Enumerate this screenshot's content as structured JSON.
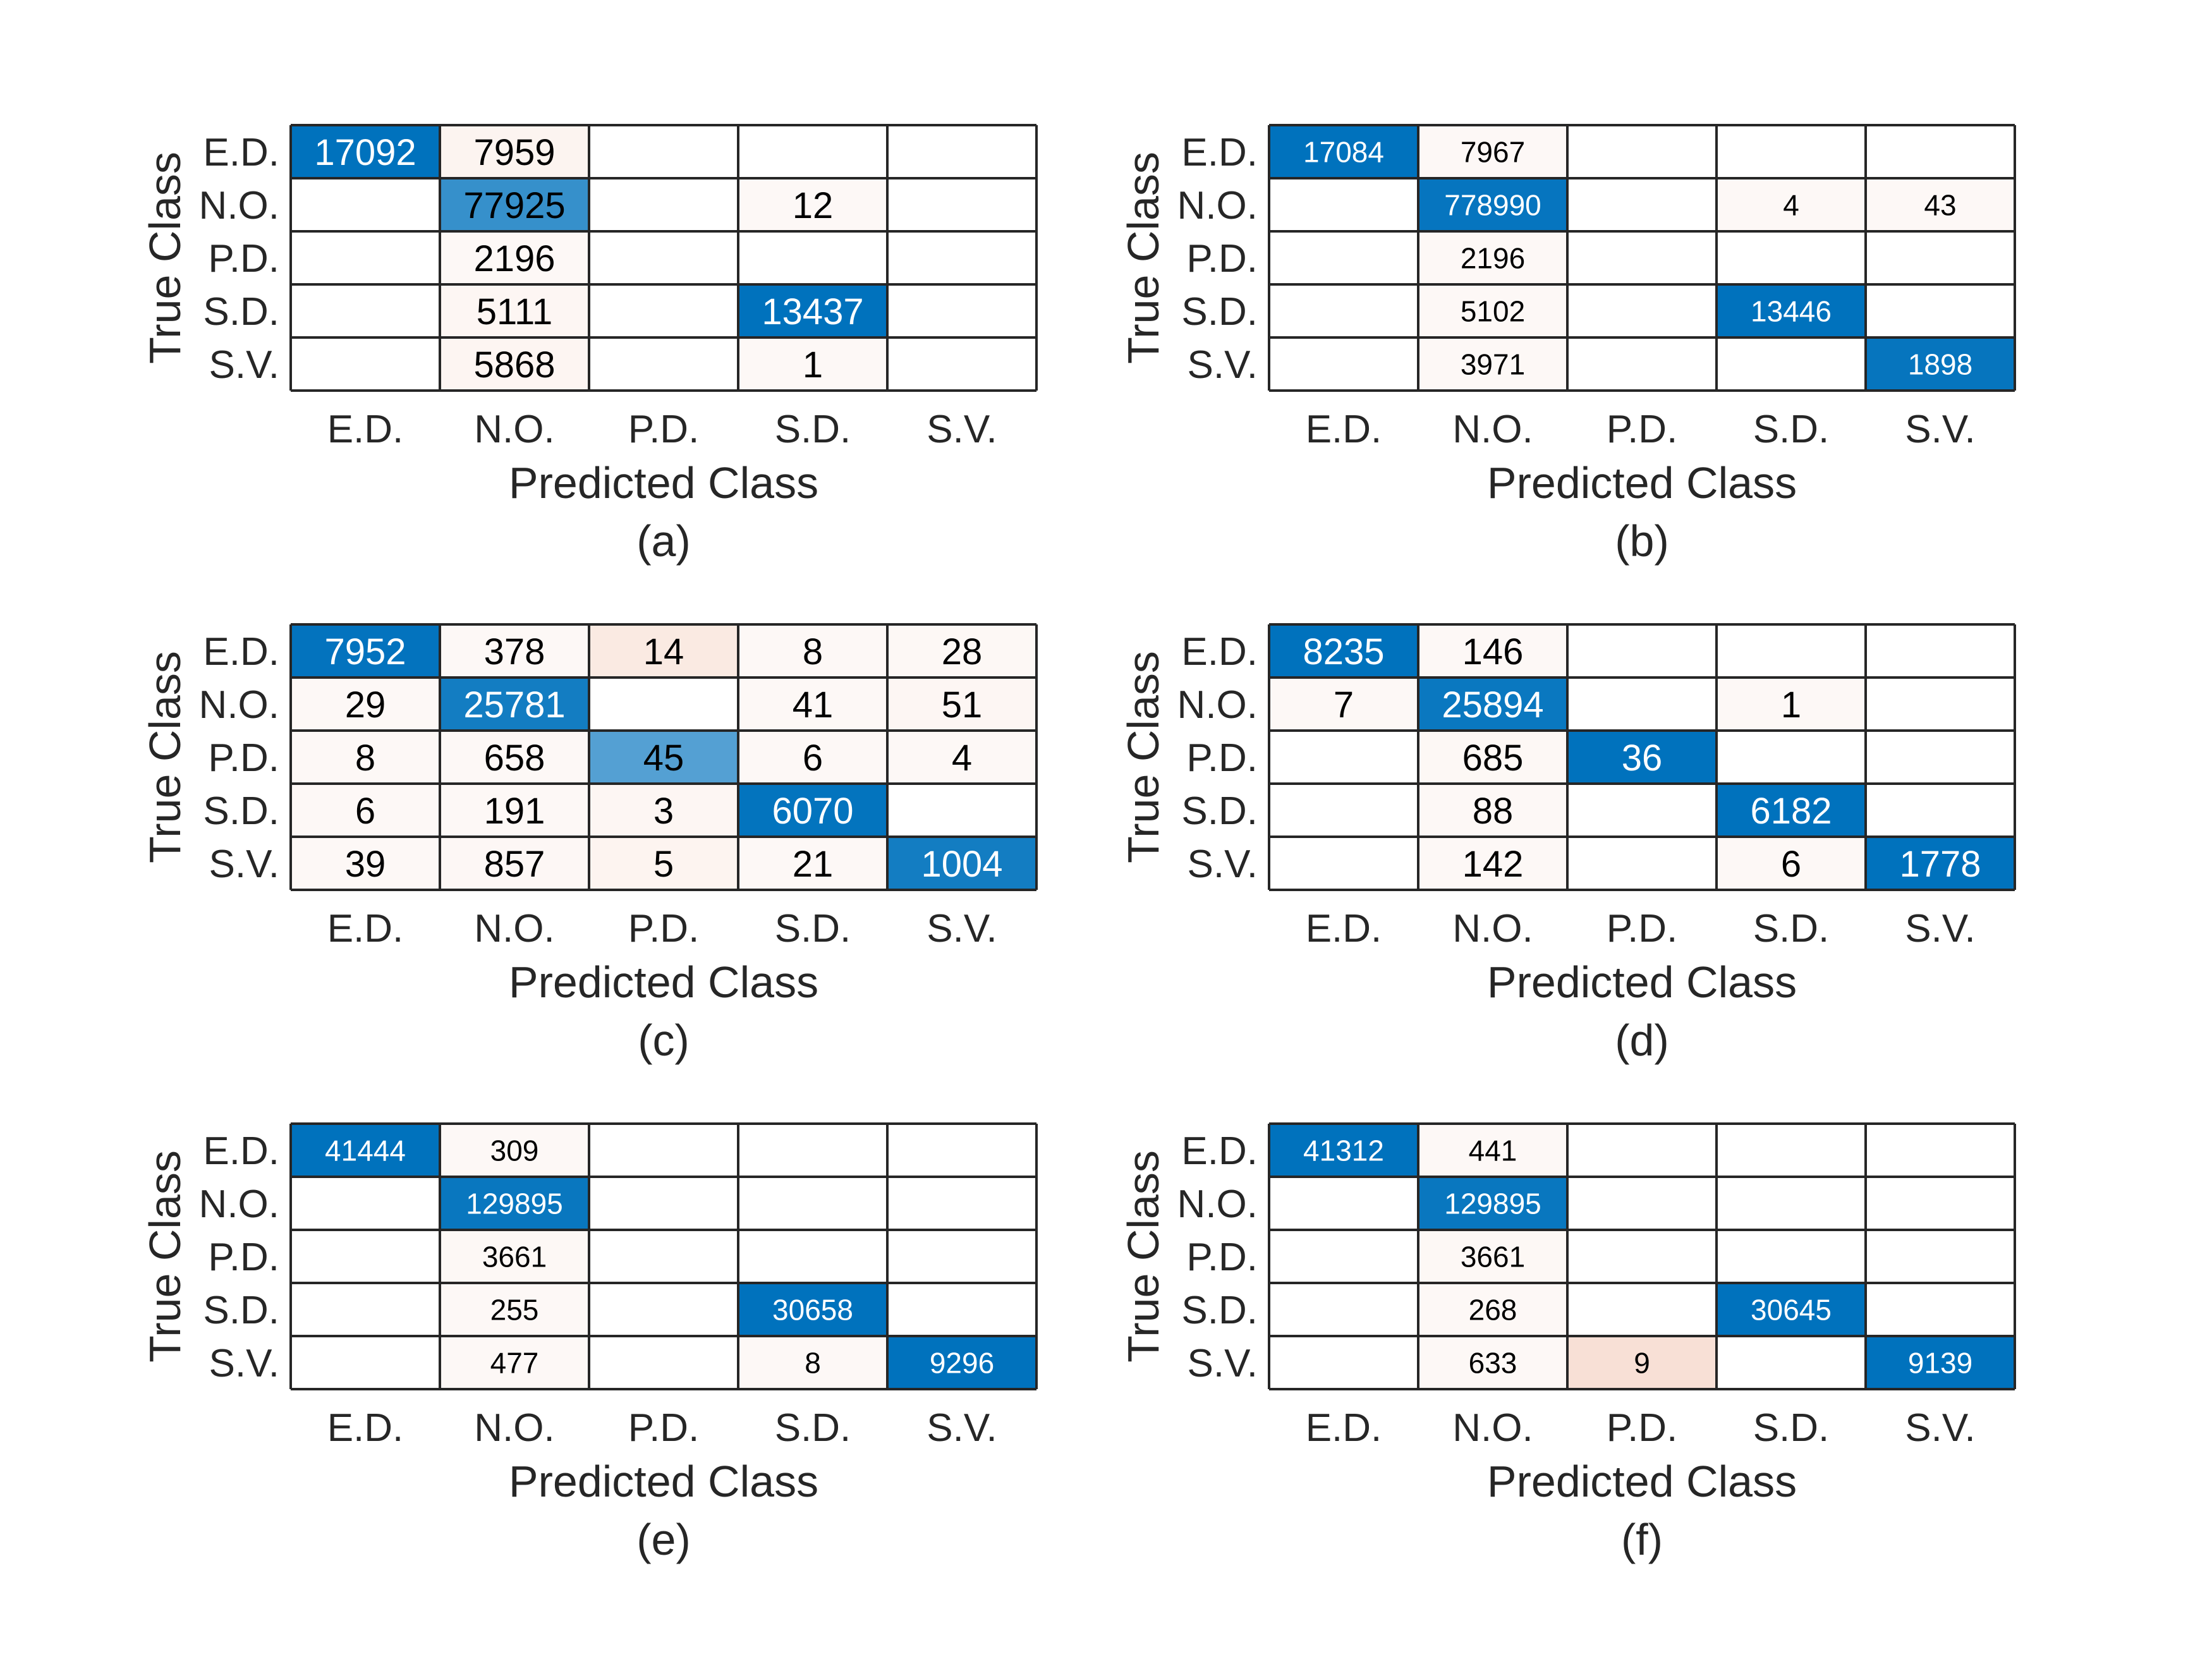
{
  "chart_data": [
    {
      "type": "heatmap",
      "caption": "(a)",
      "xlabel": "Predicted Class",
      "ylabel": "True Class",
      "x_categories": [
        "E.D.",
        "N.O.",
        "P.D.",
        "S.D.",
        "S.V."
      ],
      "y_categories": [
        "E.D.",
        "N.O.",
        "P.D.",
        "S.D.",
        "S.V."
      ],
      "values": [
        [
          17092,
          7959,
          null,
          null,
          null
        ],
        [
          null,
          77925,
          null,
          12,
          null
        ],
        [
          null,
          2196,
          null,
          null,
          null
        ],
        [
          null,
          5111,
          null,
          13437,
          null
        ],
        [
          null,
          5868,
          null,
          1,
          null
        ]
      ],
      "size": "large"
    },
    {
      "type": "heatmap",
      "caption": "(b)",
      "xlabel": "Predicted Class",
      "ylabel": "True Class",
      "x_categories": [
        "E.D.",
        "N.O.",
        "P.D.",
        "S.D.",
        "S.V."
      ],
      "y_categories": [
        "E.D.",
        "N.O.",
        "P.D.",
        "S.D.",
        "S.V."
      ],
      "values": [
        [
          17084,
          7967,
          null,
          null,
          null
        ],
        [
          null,
          778990,
          null,
          4,
          43
        ],
        [
          null,
          2196,
          null,
          null,
          null
        ],
        [
          null,
          5102,
          null,
          13446,
          null
        ],
        [
          null,
          3971,
          null,
          null,
          1898
        ]
      ],
      "size": "small"
    },
    {
      "type": "heatmap",
      "caption": "(c)",
      "xlabel": "Predicted Class",
      "ylabel": "True Class",
      "x_categories": [
        "E.D.",
        "N.O.",
        "P.D.",
        "S.D.",
        "S.V."
      ],
      "y_categories": [
        "E.D.",
        "N.O.",
        "P.D.",
        "S.D.",
        "S.V."
      ],
      "values": [
        [
          7952,
          378,
          14,
          8,
          28
        ],
        [
          29,
          25781,
          null,
          41,
          51
        ],
        [
          8,
          658,
          45,
          6,
          4
        ],
        [
          6,
          191,
          3,
          6070,
          null
        ],
        [
          39,
          857,
          5,
          21,
          1004
        ]
      ],
      "size": "large"
    },
    {
      "type": "heatmap",
      "caption": "(d)",
      "xlabel": "Predicted Class",
      "ylabel": "True Class",
      "x_categories": [
        "E.D.",
        "N.O.",
        "P.D.",
        "S.D.",
        "S.V."
      ],
      "y_categories": [
        "E.D.",
        "N.O.",
        "P.D.",
        "S.D.",
        "S.V."
      ],
      "values": [
        [
          8235,
          146,
          null,
          null,
          null
        ],
        [
          7,
          25894,
          null,
          1,
          null
        ],
        [
          null,
          685,
          36,
          null,
          null
        ],
        [
          null,
          88,
          null,
          6182,
          null
        ],
        [
          null,
          142,
          null,
          6,
          1778
        ]
      ],
      "size": "large"
    },
    {
      "type": "heatmap",
      "caption": "(e)",
      "xlabel": "Predicted Class",
      "ylabel": "True Class",
      "x_categories": [
        "E.D.",
        "N.O.",
        "P.D.",
        "S.D.",
        "S.V."
      ],
      "y_categories": [
        "E.D.",
        "N.O.",
        "P.D.",
        "S.D.",
        "S.V."
      ],
      "values": [
        [
          41444,
          309,
          null,
          null,
          null
        ],
        [
          null,
          129895,
          null,
          null,
          null
        ],
        [
          null,
          3661,
          null,
          null,
          null
        ],
        [
          null,
          255,
          null,
          30658,
          null
        ],
        [
          null,
          477,
          null,
          8,
          9296
        ]
      ],
      "size": "small"
    },
    {
      "type": "heatmap",
      "caption": "(f)",
      "xlabel": "Predicted Class",
      "ylabel": "True Class",
      "x_categories": [
        "E.D.",
        "N.O.",
        "P.D.",
        "S.D.",
        "S.V."
      ],
      "y_categories": [
        "E.D.",
        "N.O.",
        "P.D.",
        "S.D.",
        "S.V."
      ],
      "values": [
        [
          41312,
          441,
          null,
          null,
          null
        ],
        [
          null,
          129895,
          null,
          null,
          null
        ],
        [
          null,
          3661,
          null,
          null,
          null
        ],
        [
          null,
          268,
          null,
          30645,
          null
        ],
        [
          null,
          633,
          9,
          null,
          9139
        ]
      ],
      "size": "small"
    }
  ],
  "colors": {
    "diagonal": "#0072bd",
    "off_diagonal": "#d95319",
    "grid": "#262626",
    "text_dark": "#000000",
    "text_light": "#ffffff"
  }
}
